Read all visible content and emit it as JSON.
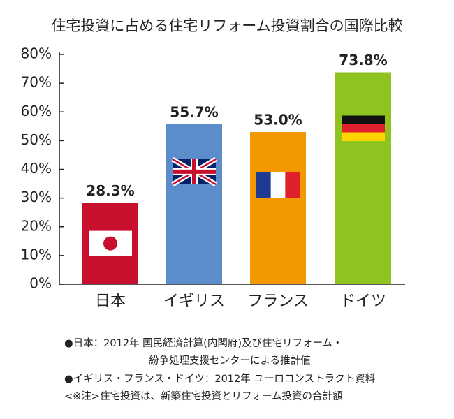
{
  "chart_data": {
    "type": "bar",
    "title": "住宅投資に占める住宅リフォーム投資割合の国際比較",
    "categories": [
      "日本",
      "イギリス",
      "フランス",
      "ドイツ"
    ],
    "values": [
      28.3,
      55.7,
      53.0,
      73.8
    ],
    "value_labels": [
      "28.3%",
      "55.7%",
      "53.0%",
      "73.8%"
    ],
    "colors": [
      "#c8102e",
      "#5b8ccc",
      "#f39800",
      "#8fc31f"
    ],
    "ylim": [
      0,
      80
    ],
    "yticks": [
      {
        "value": 0,
        "label": "0%"
      },
      {
        "value": 10,
        "label": "10%"
      },
      {
        "value": 20,
        "label": "20%"
      },
      {
        "value": 30,
        "label": "30%"
      },
      {
        "value": 40,
        "label": "40%"
      },
      {
        "value": 50,
        "label": "50%"
      },
      {
        "value": 60,
        "label": "60%"
      },
      {
        "value": 70,
        "label": "70%"
      },
      {
        "value": 80,
        "label": "80%"
      }
    ],
    "grid": false,
    "notes": [
      "●日本：2012年 国民経済計算(内閣府)及び住宅リフォーム・",
      "紛争処理支援センターによる推計値",
      "●イギリス・フランス・ドイツ：2012年 ユーロコンストラクト資料",
      "<※注>住宅投資は、新築住宅投資とリフォーム投資の合計額"
    ]
  }
}
